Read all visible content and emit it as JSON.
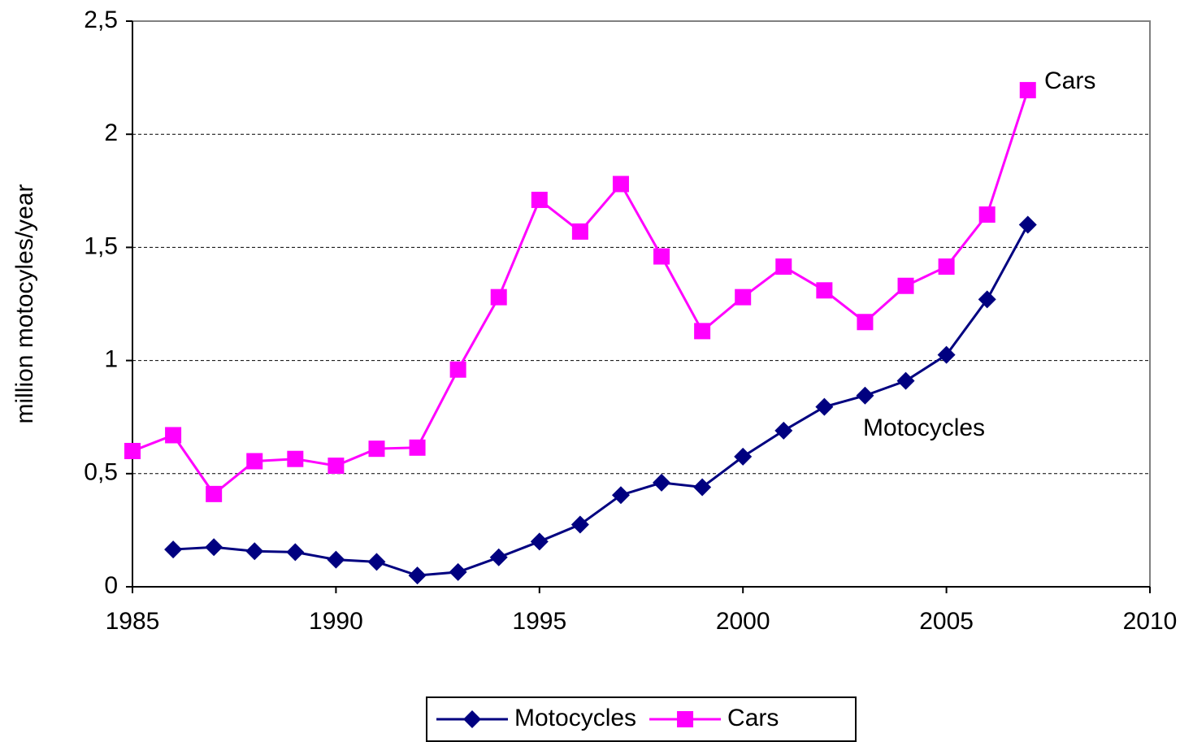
{
  "chart_data": {
    "type": "line",
    "y_label": "million motocyles/year",
    "x": [
      1985,
      1986,
      1987,
      1988,
      1989,
      1990,
      1991,
      1992,
      1993,
      1994,
      1995,
      1996,
      1997,
      1998,
      1999,
      2000,
      2001,
      2002,
      2003,
      2004,
      2005,
      2006,
      2007
    ],
    "series": [
      {
        "name": "Motocycles",
        "color": "#000080",
        "marker": "diamond",
        "values": [
          null,
          0.165,
          0.175,
          0.157,
          0.153,
          0.12,
          0.11,
          0.05,
          0.065,
          0.13,
          0.2,
          0.275,
          0.405,
          0.46,
          0.44,
          0.575,
          0.69,
          0.795,
          0.845,
          0.91,
          1.025,
          1.27,
          1.6
        ]
      },
      {
        "name": "Cars",
        "color": "#ff00ff",
        "marker": "square",
        "values": [
          0.6,
          0.67,
          0.41,
          0.555,
          0.565,
          0.535,
          0.61,
          0.615,
          0.96,
          1.28,
          1.71,
          1.57,
          1.78,
          1.46,
          1.13,
          1.28,
          1.415,
          1.31,
          1.17,
          1.33,
          1.415,
          1.645,
          2.195
        ]
      }
    ],
    "annotations": [
      "Cars",
      "Motocycles"
    ],
    "xlim": [
      1985,
      2010
    ],
    "xticks": [
      1985,
      1990,
      1995,
      2000,
      2005,
      2010
    ],
    "ylim": [
      0,
      2.5
    ],
    "yticks": [
      0,
      {
        "value": 0.5,
        "label": "0,5"
      },
      1,
      {
        "value": 1.5,
        "label": "1,5"
      },
      2,
      {
        "value": 2.5,
        "label": "2,5"
      }
    ],
    "grid": true,
    "legend": "bottom"
  }
}
